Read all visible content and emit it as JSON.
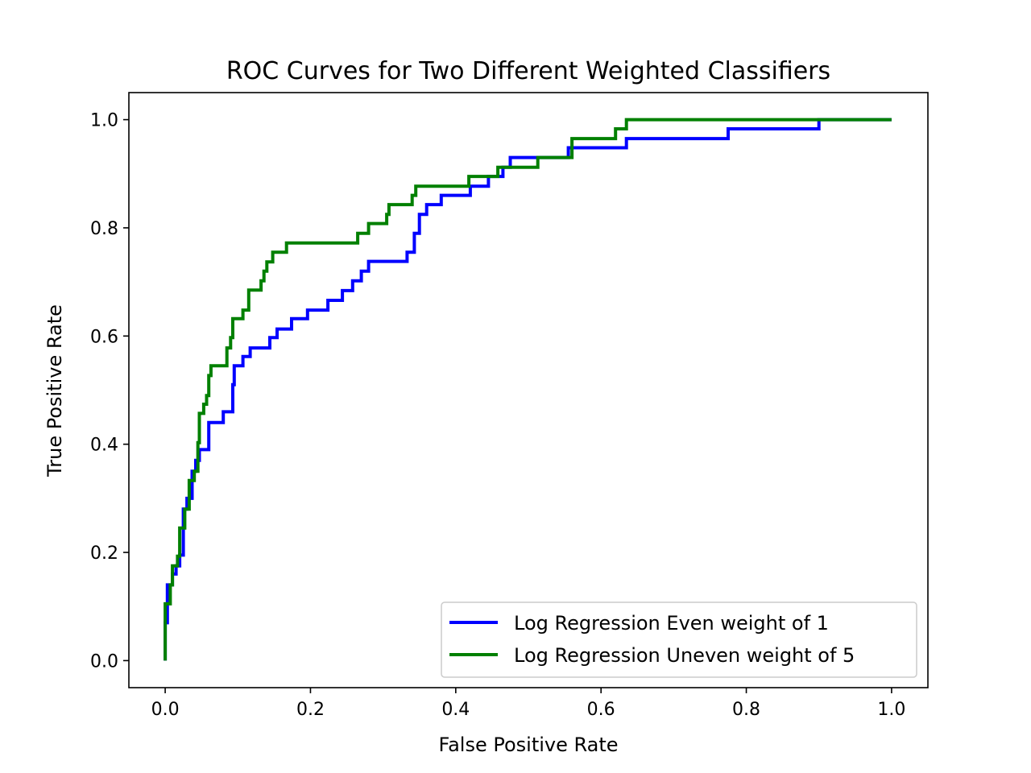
{
  "chart_data": {
    "type": "line",
    "title": "ROC Curves for Two Different Weighted Classifiers",
    "xlabel": "False Positive Rate",
    "ylabel": "True Positive Rate",
    "xlim": [
      -0.05,
      1.05
    ],
    "ylim": [
      -0.05,
      1.05
    ],
    "grid": false,
    "legend_position": "lower-right",
    "x_ticks": [
      0.0,
      0.2,
      0.4,
      0.6,
      0.8,
      1.0
    ],
    "x_tick_labels": [
      "0.0",
      "0.2",
      "0.4",
      "0.6",
      "0.8",
      "1.0"
    ],
    "y_ticks": [
      0.0,
      0.2,
      0.4,
      0.6,
      0.8,
      1.0
    ],
    "y_tick_labels": [
      "0.0",
      "0.2",
      "0.4",
      "0.6",
      "0.8",
      "1.0"
    ],
    "series": [
      {
        "name": "Log Regression Even weight of 1",
        "color": "#0000ff",
        "points": [
          [
            0.0,
            0.0
          ],
          [
            0.0,
            0.07
          ],
          [
            0.003,
            0.07
          ],
          [
            0.003,
            0.14
          ],
          [
            0.01,
            0.14
          ],
          [
            0.01,
            0.16
          ],
          [
            0.015,
            0.16
          ],
          [
            0.015,
            0.175
          ],
          [
            0.02,
            0.175
          ],
          [
            0.02,
            0.195
          ],
          [
            0.025,
            0.195
          ],
          [
            0.025,
            0.28
          ],
          [
            0.03,
            0.28
          ],
          [
            0.03,
            0.3
          ],
          [
            0.037,
            0.3
          ],
          [
            0.037,
            0.35
          ],
          [
            0.042,
            0.35
          ],
          [
            0.042,
            0.37
          ],
          [
            0.047,
            0.37
          ],
          [
            0.047,
            0.39
          ],
          [
            0.06,
            0.39
          ],
          [
            0.06,
            0.44
          ],
          [
            0.08,
            0.44
          ],
          [
            0.08,
            0.46
          ],
          [
            0.093,
            0.46
          ],
          [
            0.093,
            0.51
          ],
          [
            0.095,
            0.51
          ],
          [
            0.095,
            0.545
          ],
          [
            0.107,
            0.545
          ],
          [
            0.107,
            0.562
          ],
          [
            0.117,
            0.562
          ],
          [
            0.117,
            0.578
          ],
          [
            0.144,
            0.578
          ],
          [
            0.144,
            0.597
          ],
          [
            0.154,
            0.597
          ],
          [
            0.154,
            0.613
          ],
          [
            0.174,
            0.613
          ],
          [
            0.174,
            0.632
          ],
          [
            0.196,
            0.632
          ],
          [
            0.196,
            0.648
          ],
          [
            0.224,
            0.648
          ],
          [
            0.224,
            0.666
          ],
          [
            0.244,
            0.666
          ],
          [
            0.244,
            0.684
          ],
          [
            0.258,
            0.684
          ],
          [
            0.258,
            0.702
          ],
          [
            0.27,
            0.702
          ],
          [
            0.27,
            0.72
          ],
          [
            0.28,
            0.72
          ],
          [
            0.28,
            0.738
          ],
          [
            0.333,
            0.738
          ],
          [
            0.333,
            0.755
          ],
          [
            0.343,
            0.755
          ],
          [
            0.343,
            0.79
          ],
          [
            0.35,
            0.79
          ],
          [
            0.35,
            0.825
          ],
          [
            0.36,
            0.825
          ],
          [
            0.36,
            0.843
          ],
          [
            0.38,
            0.843
          ],
          [
            0.38,
            0.86
          ],
          [
            0.4,
            0.86
          ],
          [
            0.4,
            0.86
          ],
          [
            0.42,
            0.86
          ],
          [
            0.42,
            0.877
          ],
          [
            0.445,
            0.877
          ],
          [
            0.445,
            0.895
          ],
          [
            0.465,
            0.895
          ],
          [
            0.465,
            0.912
          ],
          [
            0.475,
            0.912
          ],
          [
            0.475,
            0.93
          ],
          [
            0.555,
            0.93
          ],
          [
            0.555,
            0.948
          ],
          [
            0.635,
            0.948
          ],
          [
            0.635,
            0.965
          ],
          [
            0.775,
            0.965
          ],
          [
            0.775,
            0.983
          ],
          [
            0.9,
            0.983
          ],
          [
            0.9,
            1.0
          ],
          [
            1.0,
            1.0
          ]
        ]
      },
      {
        "name": "Log Regression Uneven weight of 5",
        "color": "#008000",
        "points": [
          [
            0.0,
            0.0
          ],
          [
            0.0,
            0.105
          ],
          [
            0.007,
            0.105
          ],
          [
            0.007,
            0.14
          ],
          [
            0.01,
            0.14
          ],
          [
            0.01,
            0.175
          ],
          [
            0.017,
            0.175
          ],
          [
            0.017,
            0.193
          ],
          [
            0.02,
            0.193
          ],
          [
            0.02,
            0.245
          ],
          [
            0.027,
            0.245
          ],
          [
            0.027,
            0.28
          ],
          [
            0.033,
            0.28
          ],
          [
            0.033,
            0.333
          ],
          [
            0.04,
            0.333
          ],
          [
            0.04,
            0.35
          ],
          [
            0.045,
            0.35
          ],
          [
            0.045,
            0.403
          ],
          [
            0.047,
            0.403
          ],
          [
            0.047,
            0.457
          ],
          [
            0.053,
            0.457
          ],
          [
            0.053,
            0.474
          ],
          [
            0.057,
            0.474
          ],
          [
            0.057,
            0.49
          ],
          [
            0.06,
            0.49
          ],
          [
            0.06,
            0.527
          ],
          [
            0.063,
            0.527
          ],
          [
            0.063,
            0.545
          ],
          [
            0.085,
            0.545
          ],
          [
            0.085,
            0.578
          ],
          [
            0.09,
            0.578
          ],
          [
            0.09,
            0.597
          ],
          [
            0.093,
            0.597
          ],
          [
            0.093,
            0.632
          ],
          [
            0.107,
            0.632
          ],
          [
            0.107,
            0.648
          ],
          [
            0.115,
            0.648
          ],
          [
            0.115,
            0.685
          ],
          [
            0.132,
            0.685
          ],
          [
            0.132,
            0.702
          ],
          [
            0.136,
            0.702
          ],
          [
            0.136,
            0.72
          ],
          [
            0.14,
            0.72
          ],
          [
            0.14,
            0.737
          ],
          [
            0.148,
            0.737
          ],
          [
            0.148,
            0.755
          ],
          [
            0.167,
            0.755
          ],
          [
            0.167,
            0.772
          ],
          [
            0.265,
            0.772
          ],
          [
            0.265,
            0.79
          ],
          [
            0.28,
            0.79
          ],
          [
            0.28,
            0.808
          ],
          [
            0.305,
            0.808
          ],
          [
            0.305,
            0.825
          ],
          [
            0.308,
            0.825
          ],
          [
            0.308,
            0.843
          ],
          [
            0.34,
            0.843
          ],
          [
            0.34,
            0.86
          ],
          [
            0.345,
            0.86
          ],
          [
            0.345,
            0.877
          ],
          [
            0.418,
            0.877
          ],
          [
            0.418,
            0.895
          ],
          [
            0.458,
            0.895
          ],
          [
            0.458,
            0.912
          ],
          [
            0.513,
            0.912
          ],
          [
            0.513,
            0.93
          ],
          [
            0.56,
            0.93
          ],
          [
            0.56,
            0.965
          ],
          [
            0.62,
            0.965
          ],
          [
            0.62,
            0.983
          ],
          [
            0.635,
            0.983
          ],
          [
            0.635,
            1.0
          ],
          [
            1.0,
            1.0
          ]
        ]
      }
    ]
  }
}
